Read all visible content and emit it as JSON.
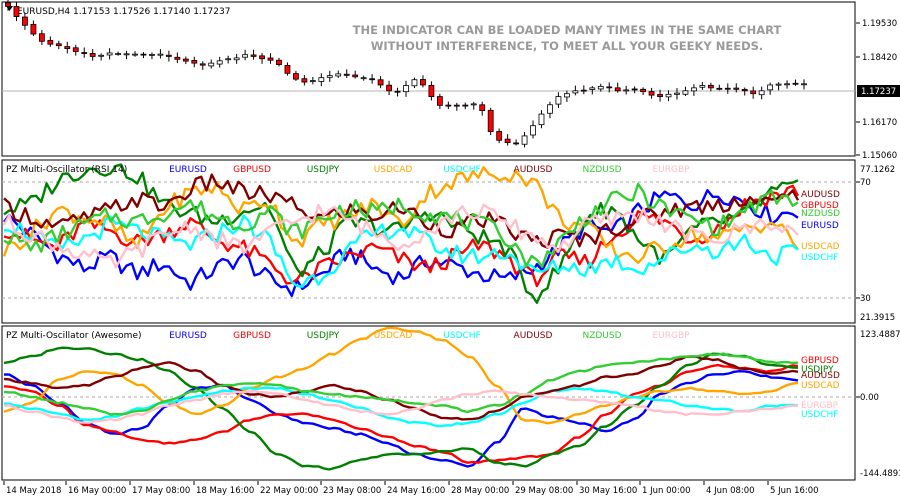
{
  "main_chart": {
    "symbol_info": "EURUSD,H4  1.17153 1.17526 1.17140 1.17237",
    "promo_line1": "THE INDICATOR CAN BE LOADED MANY TIMES IN THE SAME CHART",
    "promo_line2": "WITHOUT INTERFERENCE, TO MEET ALL YOUR GEEKY NEEDS.",
    "current_price": "1.17237",
    "price_ticks": [
      "1.19530",
      "1.18420",
      "1.17237",
      "1.16170",
      "1.15060"
    ]
  },
  "pane_rsi": {
    "title": "PZ Multi-Oscillator (RSI 14)",
    "scale_ticks": [
      "77.1262",
      "70",
      "30",
      "21.3915"
    ],
    "end_labels": [
      "AUDUSD",
      "GBPUSD",
      "NZDUSD",
      "EURUSD",
      "USDCAD",
      "USDCHF"
    ]
  },
  "pane_ao": {
    "title": "PZ Multi-Oscillator (Awesome)",
    "scale_ticks": [
      "123.4887",
      "0.00",
      "-144.4891"
    ],
    "end_labels": [
      "GBPUSD",
      "USDJPY",
      "AUDUSD",
      "USDCAD",
      "EURGBP",
      "USDCHF"
    ]
  },
  "time_axis": [
    "14 May 2018",
    "16 May 00:00",
    "17 May 08:00",
    "18 May 16:00",
    "22 May 00:00",
    "23 May 08:00",
    "24 May 16:00",
    "28 May 00:00",
    "29 May 08:00",
    "30 May 16:00",
    "1 Jun 00:00",
    "4 Jun 08:00",
    "5 Jun 16:00"
  ],
  "chart_data": [
    {
      "type": "candlestick",
      "symbol": "EURUSD",
      "timeframe": "H4",
      "last_ohlc": {
        "open": 1.17153,
        "high": 1.17526,
        "low": 1.1714,
        "close": 1.17237
      },
      "ylim": [
        1.1476,
        1.2005
      ],
      "y_ticks": [
        1.1953,
        1.1842,
        1.17237,
        1.1617,
        1.1506
      ],
      "close": [
        1.199,
        1.1955,
        1.1925,
        1.1895,
        1.187,
        1.186,
        1.1855,
        1.1845,
        1.1835,
        1.183,
        1.1818,
        1.1822,
        1.183,
        1.1828,
        1.1827,
        1.1826,
        1.1823,
        1.1825,
        1.1826,
        1.1818,
        1.1808,
        1.1802,
        1.1795,
        1.1788,
        1.1795,
        1.1803,
        1.181,
        1.1813,
        1.1824,
        1.1818,
        1.181,
        1.1805,
        1.179,
        1.176,
        1.174,
        1.173,
        1.1735,
        1.1745,
        1.1752,
        1.1758,
        1.1753,
        1.1748,
        1.1745,
        1.174,
        1.172,
        1.17,
        1.1698,
        1.1718,
        1.1738,
        1.172,
        1.168,
        1.165,
        1.165,
        1.1648,
        1.165,
        1.1655,
        1.1632,
        1.156,
        1.153,
        1.1522,
        1.152,
        1.1545,
        1.158,
        1.162,
        1.1652,
        1.168,
        1.169,
        1.17,
        1.1702,
        1.171,
        1.1715,
        1.171,
        1.17,
        1.1703,
        1.1706,
        1.1697,
        1.1685,
        1.168,
        1.1688,
        1.1692,
        1.17,
        1.171,
        1.1718,
        1.171,
        1.1708,
        1.1706,
        1.1705,
        1.17,
        1.169,
        1.17,
        1.172,
        1.1723,
        1.1724,
        1.1725,
        1.1724
      ]
    },
    {
      "type": "line",
      "title": "PZ Multi-Oscillator (RSI 14)",
      "ylim": [
        21.3915,
        77.1262
      ],
      "reference_lines": [
        70,
        30
      ],
      "series_names": [
        "EURUSD",
        "GBPUSD",
        "USDJPY",
        "USDCAD",
        "USDCHF",
        "AUDUSD",
        "NZDUSD",
        "EURGBP"
      ],
      "series_colors": [
        "#0000ff",
        "#ff0000",
        "#008000",
        "#ffa500",
        "#00ffff",
        "#800000",
        "#32cd32",
        "#ffc0cb"
      ],
      "series": [
        {
          "name": "EURUSD",
          "color": "#0000ff",
          "anchors": [
            58,
            52,
            45,
            40,
            44,
            38,
            42,
            35,
            40,
            44,
            36,
            33,
            38,
            46,
            40,
            37,
            43,
            41,
            38,
            36,
            40,
            47,
            55,
            52,
            60,
            65,
            62,
            66,
            63,
            58,
            60
          ]
        },
        {
          "name": "GBPUSD",
          "color": "#ff0000",
          "anchors": [
            54,
            50,
            47,
            55,
            53,
            49,
            52,
            56,
            50,
            47,
            42,
            35,
            40,
            44,
            47,
            43,
            40,
            44,
            48,
            44,
            36,
            44,
            42,
            51,
            58,
            56,
            50,
            54,
            62,
            65,
            67
          ]
        },
        {
          "name": "USDJPY",
          "color": "#008000",
          "anchors": [
            60,
            62,
            70,
            74,
            75,
            72,
            62,
            59,
            56,
            60,
            62,
            38,
            45,
            56,
            54,
            53,
            60,
            55,
            51,
            47,
            30,
            40,
            58,
            61,
            50,
            43,
            53,
            56,
            58,
            66,
            68
          ]
        },
        {
          "name": "USDCAD",
          "color": "#ffa500",
          "anchors": [
            46,
            52,
            60,
            58,
            55,
            47,
            60,
            66,
            68,
            60,
            64,
            49,
            55,
            58,
            62,
            55,
            66,
            70,
            72,
            73,
            70,
            57,
            54,
            46,
            44,
            48,
            52,
            50,
            54,
            56,
            48
          ]
        },
        {
          "name": "USDCHF",
          "color": "#00ffff",
          "anchors": [
            56,
            52,
            46,
            50,
            55,
            53,
            50,
            48,
            52,
            56,
            50,
            34,
            38,
            46,
            52,
            54,
            49,
            45,
            44,
            46,
            38,
            41,
            40,
            43,
            40,
            44,
            48,
            46,
            50,
            44,
            46
          ]
        },
        {
          "name": "AUDUSD",
          "color": "#800000",
          "anchors": [
            61,
            58,
            54,
            57,
            60,
            64,
            61,
            67,
            70,
            66,
            65,
            61,
            57,
            60,
            58,
            61,
            56,
            53,
            57,
            54,
            49,
            51,
            50,
            54,
            57,
            60,
            61,
            62,
            64,
            62,
            66
          ]
        },
        {
          "name": "NZDUSD",
          "color": "#32cd32",
          "anchors": [
            52,
            47,
            51,
            55,
            58,
            56,
            59,
            62,
            58,
            55,
            60,
            52,
            57,
            61,
            59,
            62,
            59,
            57,
            55,
            51,
            41,
            49,
            58,
            63,
            66,
            60,
            57,
            54,
            60,
            64,
            63
          ]
        },
        {
          "name": "EURGBP",
          "color": "#ffc0cb",
          "anchors": [
            56,
            52,
            48,
            45,
            41,
            46,
            51,
            55,
            50,
            47,
            52,
            56,
            60,
            57,
            52,
            49,
            53,
            58,
            60,
            55,
            51,
            47,
            55,
            57,
            59,
            55,
            51,
            50,
            54,
            56,
            52
          ]
        }
      ]
    },
    {
      "type": "line",
      "title": "PZ Multi-Oscillator (Awesome)",
      "ylim": [
        -144.4891,
        123.4887
      ],
      "reference_lines": [
        0
      ],
      "series_names": [
        "EURUSD",
        "GBPUSD",
        "USDJPY",
        "USDCAD",
        "USDCHF",
        "AUDUSD",
        "NZDUSD",
        "EURGBP"
      ],
      "series_colors": [
        "#0000ff",
        "#ff0000",
        "#008000",
        "#ffa500",
        "#00ffff",
        "#800000",
        "#32cd32",
        "#ffc0cb"
      ],
      "series": [
        {
          "name": "EURUSD",
          "color": "#0000ff",
          "anchors": [
            40,
            20,
            -10,
            -45,
            -65,
            -55,
            -15,
            15,
            20,
            -5,
            -30,
            -45,
            -55,
            -65,
            -80,
            -100,
            -110,
            -120,
            -80,
            -20,
            -35,
            -45,
            -60,
            -40,
            5,
            25,
            40,
            45,
            35,
            30
          ]
        },
        {
          "name": "GBPUSD",
          "color": "#ff0000",
          "anchors": [
            20,
            10,
            -15,
            -50,
            -60,
            -75,
            -80,
            -75,
            -60,
            -40,
            -30,
            -30,
            -40,
            -55,
            -70,
            -85,
            -95,
            -115,
            -110,
            -105,
            -100,
            -70,
            -30,
            5,
            20,
            45,
            55,
            50,
            45,
            55
          ]
        },
        {
          "name": "USDJPY",
          "color": "#008000",
          "anchors": [
            60,
            70,
            85,
            85,
            75,
            65,
            45,
            15,
            -20,
            -60,
            -100,
            -120,
            -125,
            -110,
            -100,
            -100,
            -95,
            -90,
            -115,
            -120,
            -100,
            -85,
            -50,
            -15,
            20,
            55,
            75,
            70,
            55,
            50
          ]
        },
        {
          "name": "USDCAD",
          "color": "#ffa500",
          "anchors": [
            -25,
            -10,
            30,
            45,
            40,
            20,
            -10,
            -30,
            -15,
            15,
            35,
            50,
            75,
            100,
            120,
            115,
            100,
            70,
            20,
            -40,
            -45,
            -30,
            -15,
            0,
            10,
            15,
            10,
            5,
            10,
            25
          ]
        },
        {
          "name": "USDCHF",
          "color": "#00ffff",
          "anchors": [
            -10,
            -20,
            -30,
            -40,
            -35,
            -20,
            -10,
            0,
            10,
            15,
            15,
            5,
            -5,
            -20,
            -35,
            -45,
            -50,
            -45,
            -30,
            -10,
            10,
            15,
            10,
            0,
            -5,
            -15,
            -20,
            -25,
            -15,
            -15
          ]
        },
        {
          "name": "AUDUSD",
          "color": "#800000",
          "anchors": [
            30,
            25,
            15,
            20,
            35,
            50,
            60,
            45,
            20,
            5,
            0,
            10,
            20,
            10,
            -5,
            -20,
            -35,
            -40,
            -25,
            0,
            10,
            20,
            35,
            40,
            55,
            70,
            65,
            50,
            40,
            45
          ]
        },
        {
          "name": "NZDUSD",
          "color": "#32cd32",
          "anchors": [
            10,
            0,
            -10,
            -20,
            -30,
            -25,
            -5,
            10,
            20,
            25,
            20,
            10,
            5,
            0,
            -5,
            -10,
            -15,
            -25,
            -15,
            5,
            30,
            45,
            55,
            60,
            65,
            70,
            75,
            70,
            60,
            60
          ]
        },
        {
          "name": "EURGBP",
          "color": "#ffc0cb",
          "anchors": [
            -15,
            -25,
            -35,
            -45,
            -40,
            -30,
            -15,
            -5,
            5,
            10,
            5,
            -5,
            -15,
            -25,
            -30,
            -20,
            -5,
            5,
            10,
            5,
            0,
            -5,
            -10,
            -15,
            -25,
            -30,
            -30,
            -25,
            -20,
            -15
          ]
        }
      ]
    }
  ]
}
